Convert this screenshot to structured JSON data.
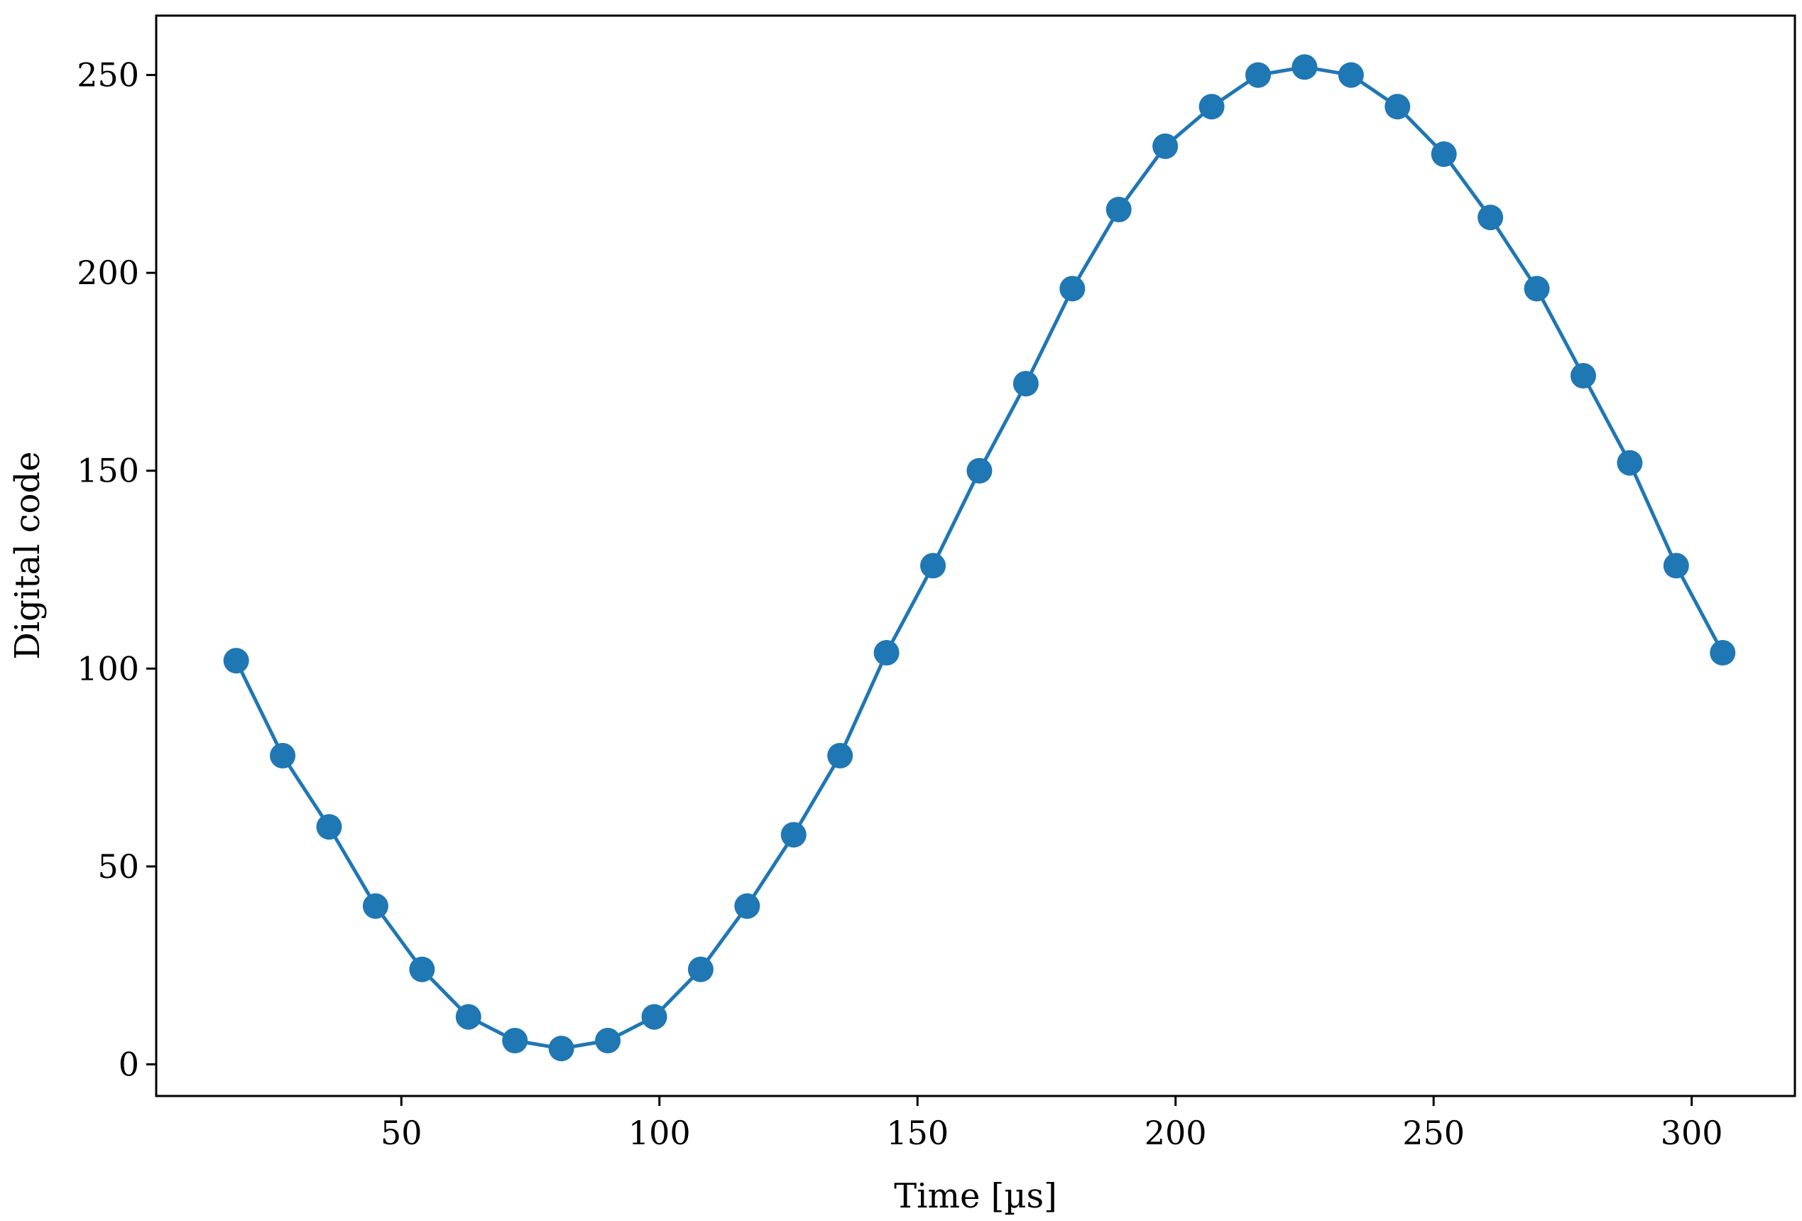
{
  "chart_data": {
    "type": "line",
    "title": "",
    "xlabel": "Time [µs]",
    "ylabel": "Digital code",
    "xlim": [
      2.5,
      320
    ],
    "ylim": [
      -8,
      265
    ],
    "xticks": [
      50,
      100,
      150,
      200,
      250,
      300
    ],
    "yticks": [
      0,
      50,
      100,
      150,
      200,
      250
    ],
    "grid": false,
    "colors": {
      "series": "#1f77b4",
      "axes": "#000000"
    },
    "series": [
      {
        "marker": "circle",
        "x": [
          18,
          27,
          36,
          45,
          54,
          63,
          72,
          81,
          90,
          99,
          108,
          117,
          126,
          135,
          144,
          153,
          162,
          171,
          180,
          189,
          198,
          207,
          216,
          225,
          234,
          243,
          252,
          261,
          270,
          279,
          288,
          297,
          306
        ],
        "y": [
          102,
          78,
          60,
          40,
          24,
          12,
          6,
          4,
          6,
          12,
          24,
          40,
          58,
          78,
          104,
          126,
          150,
          172,
          196,
          216,
          232,
          242,
          250,
          252,
          250,
          242,
          230,
          214,
          196,
          174,
          152,
          126,
          104
        ]
      }
    ]
  }
}
